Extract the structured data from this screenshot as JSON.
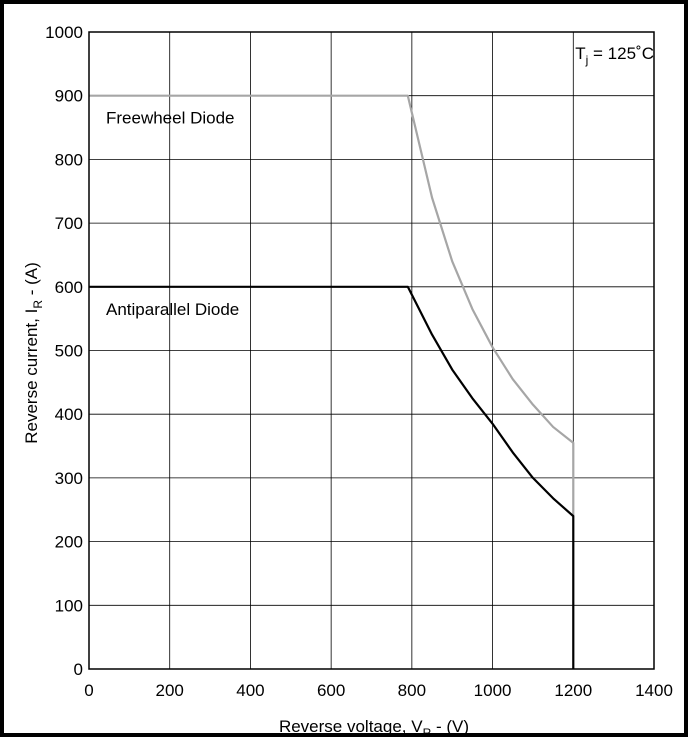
{
  "chart_data": {
    "type": "line",
    "xlabel": {
      "main": "Reverse voltage, V",
      "sub": "R",
      "tail": " - (V)"
    },
    "ylabel": {
      "main": "Reverse current, I",
      "sub": "R",
      "tail": " - (A)"
    },
    "xlim": [
      0,
      1400
    ],
    "ylim": [
      0,
      1000
    ],
    "xticks": [
      0,
      200,
      400,
      600,
      800,
      1000,
      1200,
      1400
    ],
    "yticks": [
      0,
      100,
      200,
      300,
      400,
      500,
      600,
      700,
      800,
      900,
      1000
    ],
    "grid": true,
    "annotation": {
      "main": "T",
      "sub": "j",
      "tail": " = 125˚C"
    },
    "series": [
      {
        "name": "Freewheel Diode",
        "color": "#a6a6a6",
        "points": [
          [
            0,
            900
          ],
          [
            790,
            900
          ],
          [
            850,
            740
          ],
          [
            900,
            640
          ],
          [
            950,
            565
          ],
          [
            1000,
            505
          ],
          [
            1050,
            455
          ],
          [
            1100,
            415
          ],
          [
            1150,
            380
          ],
          [
            1200,
            355
          ],
          [
            1200,
            240
          ]
        ]
      },
      {
        "name": "Antiparallel Diode",
        "color": "#000000",
        "points": [
          [
            0,
            600
          ],
          [
            790,
            600
          ],
          [
            850,
            525
          ],
          [
            900,
            470
          ],
          [
            950,
            425
          ],
          [
            1000,
            385
          ],
          [
            1050,
            340
          ],
          [
            1100,
            300
          ],
          [
            1150,
            268
          ],
          [
            1200,
            240
          ],
          [
            1200,
            0
          ]
        ]
      }
    ]
  }
}
